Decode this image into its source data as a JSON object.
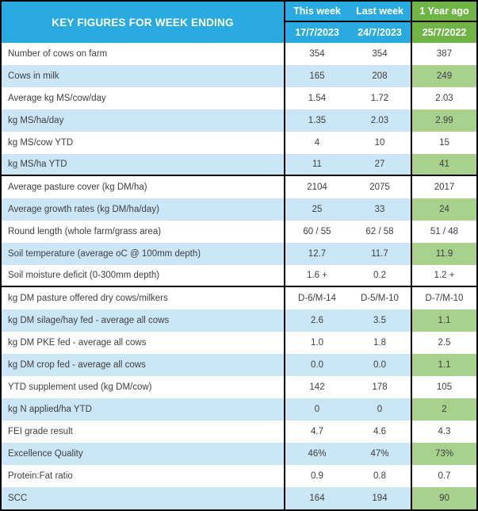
{
  "table": {
    "title": "KEY FIGURES FOR WEEK ENDING",
    "columns": [
      {
        "label": "This week",
        "date": "17/7/2023"
      },
      {
        "label": "Last week",
        "date": "24/7/2023"
      },
      {
        "label": "1 Year ago",
        "date": "25/7/2022"
      }
    ],
    "rows": [
      {
        "label": "Number of cows on farm",
        "values": [
          "354",
          "354",
          "387"
        ],
        "shade": "white"
      },
      {
        "label": "Cows in milk",
        "values": [
          "165",
          "208",
          "249"
        ],
        "shade": "blue"
      },
      {
        "label": "Average kg MS/cow/day",
        "values": [
          "1.54",
          "1.72",
          "2.03"
        ],
        "shade": "white"
      },
      {
        "label": "kg MS/ha/day",
        "values": [
          "1.35",
          "2.03",
          "2.99"
        ],
        "shade": "blue"
      },
      {
        "label": "kg MS/cow YTD",
        "values": [
          "4",
          "10",
          "15"
        ],
        "shade": "white"
      },
      {
        "label": "kg MS/ha YTD",
        "values": [
          "11",
          "27",
          "41"
        ],
        "shade": "blue",
        "section_end": true
      },
      {
        "label": "Average pasture cover (kg DM/ha)",
        "values": [
          "2104",
          "2075",
          "2017"
        ],
        "shade": "white"
      },
      {
        "label": "Average growth rates (kg DM/ha/day)",
        "values": [
          "25",
          "33",
          "24"
        ],
        "shade": "blue"
      },
      {
        "label": "Round length (whole farm/grass area)",
        "values": [
          "60 / 55",
          "62 / 58",
          "51 / 48"
        ],
        "shade": "white"
      },
      {
        "label": "Soil temperature (average oC  @ 100mm depth)",
        "values": [
          "12.7",
          "11.7",
          "11.9"
        ],
        "shade": "blue"
      },
      {
        "label": "Soil moisture deficit (0-300mm depth)",
        "values": [
          "1.6 +",
          "0.2",
          "1.2 +"
        ],
        "shade": "white",
        "section_end": true
      },
      {
        "label": "kg DM pasture offered dry cows/milkers",
        "values": [
          "D-6/M-14",
          "D-5/M-10",
          "D-7/M-10"
        ],
        "shade": "white"
      },
      {
        "label": "kg DM silage/hay fed - average all cows",
        "values": [
          "2.6",
          "3.5",
          "1.1"
        ],
        "shade": "blue"
      },
      {
        "label": "kg DM PKE fed - average all cows",
        "values": [
          "1.0",
          "1.8",
          "2.5"
        ],
        "shade": "white"
      },
      {
        "label": "kg DM crop fed - average all cows",
        "values": [
          "0.0",
          "0.0",
          "1.1"
        ],
        "shade": "blue"
      },
      {
        "label": "YTD supplement used (kg DM/cow)",
        "values": [
          "142",
          "178",
          "105"
        ],
        "shade": "white"
      },
      {
        "label": "kg N applied/ha YTD",
        "values": [
          "0",
          "0",
          "2"
        ],
        "shade": "blue"
      },
      {
        "label": "FEI grade result",
        "values": [
          "4.7",
          "4.6",
          "4.3"
        ],
        "shade": "white"
      },
      {
        "label": "Excellence Quality",
        "values": [
          "46%",
          "47%",
          "73%"
        ],
        "shade": "blue"
      },
      {
        "label": "Protein:Fat ratio",
        "values": [
          "0.9",
          "0.8",
          "0.7"
        ],
        "shade": "white"
      },
      {
        "label": "SCC",
        "values": [
          "164",
          "194",
          "90"
        ],
        "shade": "blue"
      }
    ]
  },
  "colors": {
    "header_blue": "#29ABE2",
    "header_green": "#6FB545",
    "row_blue": "#CBE6F6",
    "cell_green": "#A9D18E",
    "grid_black": "#000000",
    "text_dark": "#3F3F3F",
    "header_text": "#FFFFFF"
  }
}
